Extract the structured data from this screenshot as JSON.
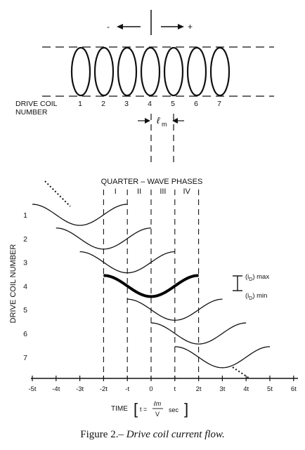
{
  "top": {
    "minus_sign": "-",
    "plus_sign": "+",
    "drive_coil_label_line1": "DRIVE COIL",
    "drive_coil_label_line2": "NUMBER",
    "coil_numbers": [
      "1",
      "2",
      "3",
      "4",
      "5",
      "6",
      "7"
    ],
    "lm_symbol": "ℓ",
    "lm_subscript": "m"
  },
  "chart": {
    "header": "QUARTER – WAVE PHASES",
    "phase_labels": [
      "I",
      "II",
      "III",
      "IV"
    ],
    "y_axis_label": "DRIVE COIL NUMBER",
    "y_ticks": [
      "1",
      "2",
      "3",
      "4",
      "5",
      "6",
      "7"
    ],
    "x_ticks": [
      "-5t",
      "-4t",
      "-3t",
      "-2t",
      "-t",
      "0",
      "t",
      "2t",
      "3t",
      "4t",
      "5t",
      "6t"
    ],
    "x_label_prefix": "TIME",
    "x_label_eq": "t =",
    "x_label_num": "ℓm",
    "x_label_den": "V",
    "x_label_unit": "sec",
    "legend_max_paren": "(i",
    "legend_max_sub": "D",
    "legend_max_suffix": ") max",
    "legend_min_paren": "(i",
    "legend_min_sub": "D",
    "legend_min_suffix": ") min"
  },
  "chart_data": {
    "type": "line",
    "x_range": [
      -5,
      6
    ],
    "x_unit": "t",
    "y_range": [
      1,
      7
    ],
    "phase_boundaries": [
      -2,
      -1,
      0,
      1,
      2
    ],
    "series": [
      {
        "coil": 1,
        "x": [
          -5,
          -1
        ]
      },
      {
        "coil": 2,
        "x": [
          -4,
          0
        ]
      },
      {
        "coil": 3,
        "x": [
          -3,
          1
        ]
      },
      {
        "coil": 4,
        "x": [
          -2,
          2
        ],
        "emphasized": true
      },
      {
        "coil": 5,
        "x": [
          -1,
          3
        ]
      },
      {
        "coil": 6,
        "x": [
          0,
          4
        ]
      },
      {
        "coil": 7,
        "x": [
          1,
          5
        ]
      }
    ]
  },
  "caption": {
    "prefix": "Figure 2.–",
    "title": "Drive coil current flow."
  }
}
